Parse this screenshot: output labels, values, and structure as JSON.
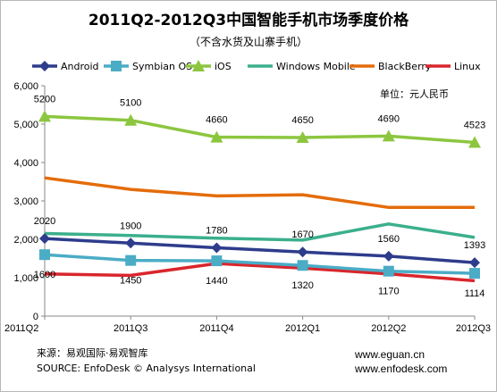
{
  "chart_data": {
    "type": "line",
    "title": "2011Q2-2012Q3中国智能手机市场季度价格",
    "subtitle": "（不含水货及山寨手机）",
    "unit_label": "单位：元人民币",
    "categories": [
      "2011Q2",
      "2011Q3",
      "2011Q4",
      "2012Q1",
      "2012Q2",
      "2012Q3"
    ],
    "ylim": [
      0,
      6000
    ],
    "yticks": [
      0,
      1000,
      2000,
      3000,
      4000,
      5000,
      6000
    ],
    "ytick_labels": [
      "0",
      "1,000",
      "2,000",
      "3,000",
      "4,000",
      "5,000",
      "6,000"
    ],
    "grid": false,
    "legend_position": "top",
    "series": [
      {
        "name": "Android",
        "color": "#2E3C8C",
        "marker": "diamond",
        "values": [
          2020,
          1900,
          1780,
          1670,
          1560,
          1393
        ],
        "labels": [
          "2020",
          "1900",
          "1780",
          "1670",
          "1560",
          "1393"
        ],
        "label_position": "above"
      },
      {
        "name": "Symbian OS",
        "color": "#4BACC6",
        "marker": "square",
        "values": [
          1600,
          1450,
          1440,
          1320,
          1170,
          1114
        ],
        "labels": [
          "1600",
          "1450",
          "1440",
          "1320",
          "1170",
          "1114"
        ],
        "label_position": "below"
      },
      {
        "name": "iOS",
        "color": "#8CC63F",
        "marker": "triangle",
        "values": [
          5200,
          5100,
          4660,
          4650,
          4690,
          4523
        ],
        "labels": [
          "5200",
          "5100",
          "4660",
          "4650",
          "4690",
          "4523"
        ],
        "label_position": "above"
      },
      {
        "name": "Windows Mobile",
        "color": "#3BAF8C",
        "marker": "none",
        "values": [
          2150,
          2100,
          2030,
          1980,
          2400,
          2050
        ],
        "labels": [],
        "label_position": "none"
      },
      {
        "name": "BlackBerry",
        "color": "#E46C0A",
        "marker": "none",
        "values": [
          3600,
          3300,
          3130,
          3160,
          2830,
          2830
        ],
        "labels": [],
        "label_position": "none"
      },
      {
        "name": "Linux",
        "color": "#D9262C",
        "marker": "none",
        "values": [
          1100,
          1060,
          1370,
          1250,
          1100,
          920
        ],
        "labels": [],
        "label_position": "none"
      }
    ]
  },
  "footer": {
    "source_cn": "来源：易观国际·易观智库",
    "source_en": "SOURCE: EnfoDesk © Analysys International",
    "url1": "www.eguan.cn",
    "url2": "www.enfodesk.com"
  }
}
